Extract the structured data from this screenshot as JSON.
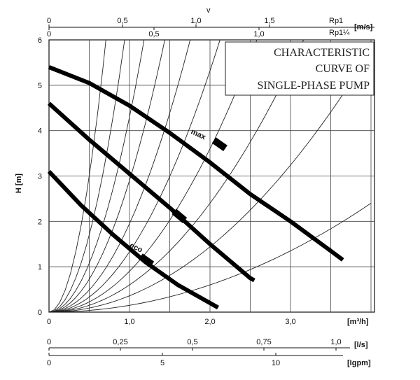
{
  "chart_data": {
    "type": "line",
    "title_lines": [
      "CHARACTERISTIC",
      "CURVE OF",
      "SINGLE-PHASE PUMP"
    ],
    "ylabel": "H [m]",
    "xlabel": "[m³/h]",
    "xlim": [
      0,
      4.3
    ],
    "ylim": [
      0,
      6
    ],
    "x_ticks": [
      "0",
      "1,0",
      "2,0",
      "3,0"
    ],
    "y_ticks": [
      "0",
      "1",
      "2",
      "3",
      "4",
      "5",
      "6"
    ],
    "grid": true,
    "top_axis_velocity": {
      "symbol": "v",
      "unit": "[m/s]",
      "rp1": {
        "label": "Rp1",
        "ticks": [
          "0",
          "0,5",
          "1,0",
          "1,5"
        ]
      },
      "rp1_25": {
        "label": "Rp1¼",
        "ticks": [
          "0",
          "0,5",
          "1,0"
        ]
      }
    },
    "bottom_axis_ls": {
      "unit": "[l/s]",
      "ticks": [
        "0",
        "0,25",
        "0,5",
        "0,75",
        "1,0"
      ]
    },
    "bottom_axis_igpm": {
      "unit": "[Igpm]",
      "ticks": [
        "0",
        "5",
        "10"
      ]
    },
    "series": [
      {
        "name": "max",
        "x": [
          0,
          0.5,
          1.0,
          1.5,
          2.0,
          2.5,
          3.0,
          3.5,
          3.65
        ],
        "y": [
          5.4,
          5.05,
          4.55,
          3.95,
          3.3,
          2.6,
          2.0,
          1.35,
          1.15
        ]
      },
      {
        "name": "",
        "x": [
          0,
          0.5,
          1.0,
          1.5,
          2.0,
          2.5,
          2.55
        ],
        "y": [
          4.6,
          3.8,
          3.05,
          2.3,
          1.5,
          0.75,
          0.7
        ]
      },
      {
        "name": "eco",
        "x": [
          0,
          0.4,
          0.8,
          1.2,
          1.6,
          2.0,
          2.1
        ],
        "y": [
          3.1,
          2.35,
          1.7,
          1.1,
          0.6,
          0.2,
          0.1
        ]
      }
    ],
    "system_curves_k": [
      12.0,
      6.8,
      4.3,
      2.9,
      1.95,
      1.33,
      0.9,
      0.6,
      0.36,
      0.15
    ],
    "annotations": [
      {
        "text": "max",
        "series": 0
      },
      {
        "text": "eco",
        "series": 2
      }
    ]
  }
}
